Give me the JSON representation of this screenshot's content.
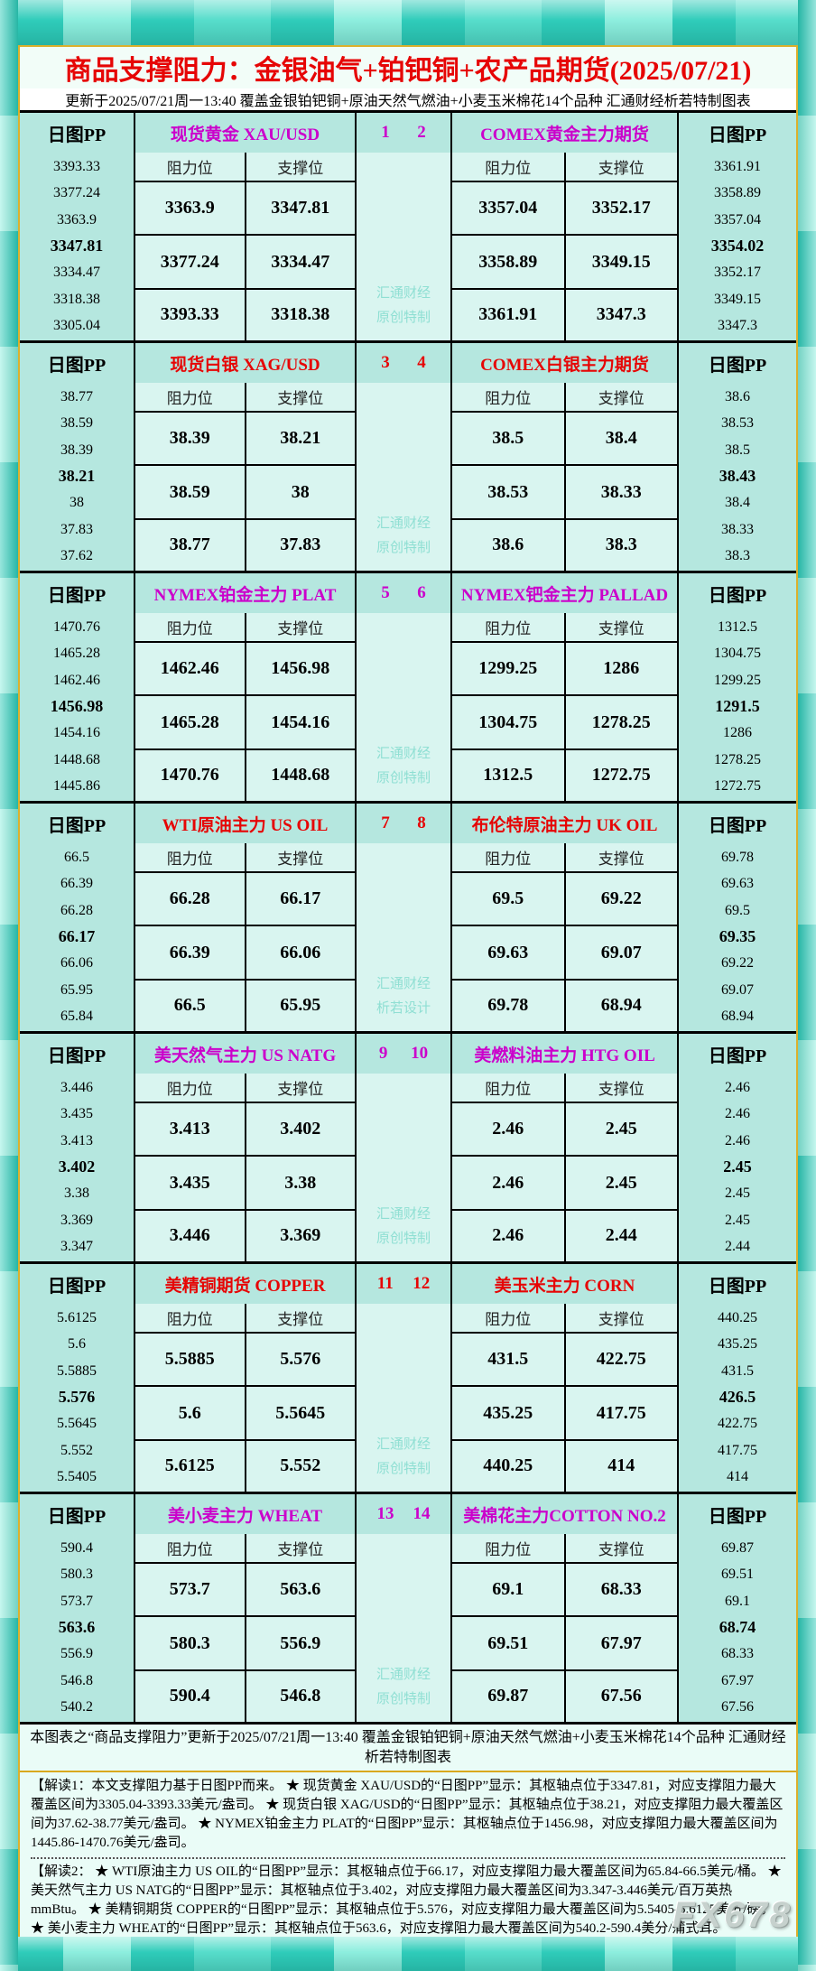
{
  "header": {
    "title": "商品支撑阻力：金银油气+铂钯铜+农产品期货(2025/07/21)",
    "subtitle": "更新于2025/07/21周一13:40 覆盖金银铂钯铜+原油天然气燃油+小麦玉米棉花14个品种 汇通财经析若特制图表"
  },
  "labels": {
    "pp": "日图PP",
    "resistance": "阻力位",
    "support": "支撑位"
  },
  "colors": {
    "magenta_accent": "#cb00cb",
    "red_accent": "#e60505",
    "watermark_teal": "#8fdfd3",
    "panel_bg": "#b5e7df",
    "cell_bg": "#d9f5f0",
    "frame_teal": "#2fccba"
  },
  "chart_data": {
    "type": "table",
    "title": "商品支撑阻力：金银油气+铂钯铜+农产品期货(2025/07/21)",
    "updated": "2025/07/21周一13:40",
    "panels": [
      {
        "accent": "#cb00cb",
        "left_index": "1",
        "right_index": "2",
        "watermark": [
          "汇通财经",
          "原创特制"
        ],
        "left": {
          "title": "现货黄金 XAU/USD",
          "pp": [
            "3393.33",
            "3377.24",
            "3363.9",
            "3347.81",
            "3334.47",
            "3318.38",
            "3305.04"
          ],
          "levels": [
            [
              "3363.9",
              "3347.81"
            ],
            [
              "3377.24",
              "3334.47"
            ],
            [
              "3393.33",
              "3318.38"
            ]
          ]
        },
        "right": {
          "title": "COMEX黄金主力期货",
          "pp": [
            "3361.91",
            "3358.89",
            "3357.04",
            "3354.02",
            "3352.17",
            "3349.15",
            "3347.3"
          ],
          "levels": [
            [
              "3357.04",
              "3352.17"
            ],
            [
              "3358.89",
              "3349.15"
            ],
            [
              "3361.91",
              "3347.3"
            ]
          ]
        }
      },
      {
        "accent": "#e60505",
        "left_index": "3",
        "right_index": "4",
        "watermark": [
          "汇通财经",
          "原创特制"
        ],
        "left": {
          "title": "现货白银 XAG/USD",
          "pp": [
            "38.77",
            "38.59",
            "38.39",
            "38.21",
            "38",
            "37.83",
            "37.62"
          ],
          "levels": [
            [
              "38.39",
              "38.21"
            ],
            [
              "38.59",
              "38"
            ],
            [
              "38.77",
              "37.83"
            ]
          ]
        },
        "right": {
          "title": "COMEX白银主力期货",
          "pp": [
            "38.6",
            "38.53",
            "38.5",
            "38.43",
            "38.4",
            "38.33",
            "38.3"
          ],
          "levels": [
            [
              "38.5",
              "38.4"
            ],
            [
              "38.53",
              "38.33"
            ],
            [
              "38.6",
              "38.3"
            ]
          ]
        }
      },
      {
        "accent": "#cb00cb",
        "left_index": "5",
        "right_index": "6",
        "watermark": [
          "汇通财经",
          "原创特制"
        ],
        "left": {
          "title": "NYMEX铂金主力 PLAT",
          "pp": [
            "1470.76",
            "1465.28",
            "1462.46",
            "1456.98",
            "1454.16",
            "1448.68",
            "1445.86"
          ],
          "levels": [
            [
              "1462.46",
              "1456.98"
            ],
            [
              "1465.28",
              "1454.16"
            ],
            [
              "1470.76",
              "1448.68"
            ]
          ]
        },
        "right": {
          "title": "NYMEX钯金主力 PALLAD",
          "pp": [
            "1312.5",
            "1304.75",
            "1299.25",
            "1291.5",
            "1286",
            "1278.25",
            "1272.75"
          ],
          "levels": [
            [
              "1299.25",
              "1286"
            ],
            [
              "1304.75",
              "1278.25"
            ],
            [
              "1312.5",
              "1272.75"
            ]
          ]
        }
      },
      {
        "accent": "#e60505",
        "left_index": "7",
        "right_index": "8",
        "watermark": [
          "汇通财经",
          "析若设计"
        ],
        "left": {
          "title": "WTI原油主力 US OIL",
          "pp": [
            "66.5",
            "66.39",
            "66.28",
            "66.17",
            "66.06",
            "65.95",
            "65.84"
          ],
          "levels": [
            [
              "66.28",
              "66.17"
            ],
            [
              "66.39",
              "66.06"
            ],
            [
              "66.5",
              "65.95"
            ]
          ]
        },
        "right": {
          "title": "布伦特原油主力 UK OIL",
          "pp": [
            "69.78",
            "69.63",
            "69.5",
            "69.35",
            "69.22",
            "69.07",
            "68.94"
          ],
          "levels": [
            [
              "69.5",
              "69.22"
            ],
            [
              "69.63",
              "69.07"
            ],
            [
              "69.78",
              "68.94"
            ]
          ]
        }
      },
      {
        "accent": "#cb00cb",
        "left_index": "9",
        "right_index": "10",
        "watermark": [
          "汇通财经",
          "原创特制"
        ],
        "left": {
          "title": "美天然气主力 US NATG",
          "pp": [
            "3.446",
            "3.435",
            "3.413",
            "3.402",
            "3.38",
            "3.369",
            "3.347"
          ],
          "levels": [
            [
              "3.413",
              "3.402"
            ],
            [
              "3.435",
              "3.38"
            ],
            [
              "3.446",
              "3.369"
            ]
          ]
        },
        "right": {
          "title": "美燃料油主力 HTG OIL",
          "pp": [
            "2.46",
            "2.46",
            "2.46",
            "2.45",
            "2.45",
            "2.45",
            "2.44"
          ],
          "levels": [
            [
              "2.46",
              "2.45"
            ],
            [
              "2.46",
              "2.45"
            ],
            [
              "2.46",
              "2.44"
            ]
          ]
        }
      },
      {
        "accent": "#e60505",
        "left_index": "11",
        "right_index": "12",
        "watermark": [
          "汇通财经",
          "原创特制"
        ],
        "left": {
          "title": "美精铜期货 COPPER",
          "pp": [
            "5.6125",
            "5.6",
            "5.5885",
            "5.576",
            "5.5645",
            "5.552",
            "5.5405"
          ],
          "levels": [
            [
              "5.5885",
              "5.576"
            ],
            [
              "5.6",
              "5.5645"
            ],
            [
              "5.6125",
              "5.552"
            ]
          ]
        },
        "right": {
          "title": "美玉米主力 CORN",
          "pp": [
            "440.25",
            "435.25",
            "431.5",
            "426.5",
            "422.75",
            "417.75",
            "414"
          ],
          "levels": [
            [
              "431.5",
              "422.75"
            ],
            [
              "435.25",
              "417.75"
            ],
            [
              "440.25",
              "414"
            ]
          ]
        }
      },
      {
        "accent": "#cb00cb",
        "left_index": "13",
        "right_index": "14",
        "watermark": [
          "汇通财经",
          "原创特制"
        ],
        "left": {
          "title": "美小麦主力 WHEAT",
          "pp": [
            "590.4",
            "580.3",
            "573.7",
            "563.6",
            "556.9",
            "546.8",
            "540.2"
          ],
          "levels": [
            [
              "573.7",
              "563.6"
            ],
            [
              "580.3",
              "556.9"
            ],
            [
              "590.4",
              "546.8"
            ]
          ]
        },
        "right": {
          "title": "美棉花主力COTTON NO.2",
          "pp": [
            "69.87",
            "69.51",
            "69.1",
            "68.74",
            "68.33",
            "67.97",
            "67.56"
          ],
          "levels": [
            [
              "69.1",
              "68.33"
            ],
            [
              "69.51",
              "67.97"
            ],
            [
              "69.87",
              "67.56"
            ]
          ]
        }
      }
    ]
  },
  "footer": {
    "note": "本图表之“商品支撑阻力”更新于2025/07/21周一13:40 覆盖金银铂钯铜+原油天然气燃油+小麦玉米棉花14个品种 汇通财经析若特制图表"
  },
  "notes": {
    "n1": "【解读1：本文支撑阻力基于日图PP而来。 ★ 现货黄金 XAU/USD的“日图PP”显示：其枢轴点位于3347.81，对应支撑阻力最大覆盖区间为3305.04-3393.33美元/盎司。 ★ 现货白银 XAG/USD的“日图PP”显示：其枢轴点位于38.21，对应支撑阻力最大覆盖区间为37.62-38.77美元/盎司。 ★ NYMEX铂金主力 PLAT的“日图PP”显示：其枢轴点位于1456.98，对应支撑阻力最大覆盖区间为1445.86-1470.76美元/盎司。",
    "n2": "【解读2： ★ WTI原油主力 US OIL的“日图PP”显示：其枢轴点位于66.17，对应支撑阻力最大覆盖区间为65.84-66.5美元/桶。 ★ 美天然气主力 US NATG的“日图PP”显示：其枢轴点位于3.402，对应支撑阻力最大覆盖区间为3.347-3.446美元/百万英热mmBtu。 ★ 美精铜期货 COPPER的“日图PP”显示：其枢轴点位于5.576，对应支撑阻力最大覆盖区间为5.5405-5.6125美分/磅。 ★ 美小麦主力 WHEAT的“日图PP”显示：其枢轴点位于563.6，对应支撑阻力最大覆盖区间为540.2-590.4美分/蒲式耳。"
  },
  "brand": "FX678"
}
